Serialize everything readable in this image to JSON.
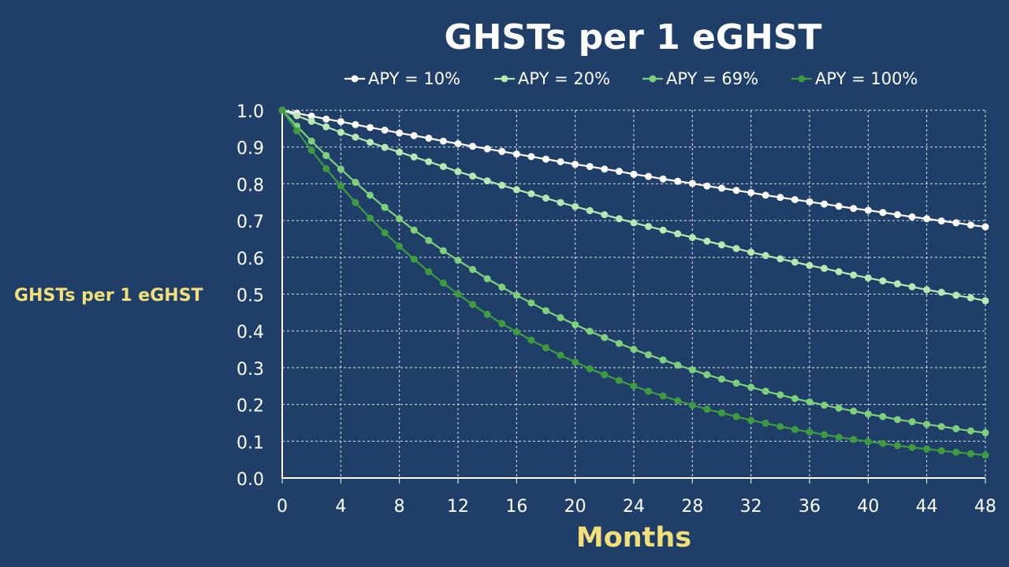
{
  "colors": {
    "background": "#1f3f69",
    "text": "#ffffff",
    "axis_label": "#f3df7a",
    "grid": "#dbe6f0",
    "axis": "#ffffff"
  },
  "chart_data": {
    "type": "line",
    "title": "GHSTs per 1 eGHST",
    "xlabel": "Months",
    "ylabel": "GHSTs per 1 eGHST",
    "xlim": [
      0,
      48
    ],
    "ylim": [
      0,
      1
    ],
    "x_ticks": [
      0,
      4,
      8,
      12,
      16,
      20,
      24,
      28,
      32,
      36,
      40,
      44,
      48
    ],
    "y_ticks": [
      0.0,
      0.1,
      0.2,
      0.3,
      0.4,
      0.5,
      0.6,
      0.7,
      0.8,
      0.9,
      1.0
    ],
    "x_tick_labels": [
      "0",
      "4",
      "8",
      "12",
      "16",
      "20",
      "24",
      "28",
      "32",
      "36",
      "40",
      "44",
      "48"
    ],
    "y_tick_labels": [
      "0.0",
      "0.1",
      "0.2",
      "0.3",
      "0.4",
      "0.5",
      "0.6",
      "0.7",
      "0.8",
      "0.9",
      "1.0"
    ],
    "grid": true,
    "legend_position": "top",
    "x": [
      0,
      1,
      2,
      3,
      4,
      5,
      6,
      7,
      8,
      9,
      10,
      11,
      12,
      13,
      14,
      15,
      16,
      17,
      18,
      19,
      20,
      21,
      22,
      23,
      24,
      25,
      26,
      27,
      28,
      29,
      30,
      31,
      32,
      33,
      34,
      35,
      36,
      37,
      38,
      39,
      40,
      41,
      42,
      43,
      44,
      45,
      46,
      47,
      48
    ],
    "series": [
      {
        "name": "APY = 10%",
        "color": "#ffffff",
        "values": [
          1.0,
          0.992,
          0.984,
          0.976,
          0.969,
          0.961,
          0.953,
          0.946,
          0.938,
          0.931,
          0.924,
          0.916,
          0.909,
          0.902,
          0.895,
          0.888,
          0.881,
          0.874,
          0.867,
          0.86,
          0.853,
          0.847,
          0.84,
          0.834,
          0.826,
          0.82,
          0.813,
          0.807,
          0.801,
          0.794,
          0.788,
          0.782,
          0.776,
          0.769,
          0.763,
          0.757,
          0.751,
          0.745,
          0.739,
          0.733,
          0.728,
          0.722,
          0.716,
          0.71,
          0.705,
          0.699,
          0.694,
          0.688,
          0.683
        ]
      },
      {
        "name": "APY = 20%",
        "color": "#b9e7b1",
        "values": [
          1.0,
          0.985,
          0.97,
          0.955,
          0.94,
          0.927,
          0.913,
          0.899,
          0.886,
          0.873,
          0.86,
          0.847,
          0.833,
          0.821,
          0.808,
          0.796,
          0.784,
          0.773,
          0.761,
          0.749,
          0.738,
          0.727,
          0.716,
          0.705,
          0.694,
          0.684,
          0.674,
          0.664,
          0.654,
          0.644,
          0.634,
          0.624,
          0.614,
          0.605,
          0.596,
          0.587,
          0.578,
          0.57,
          0.561,
          0.552,
          0.544,
          0.536,
          0.528,
          0.52,
          0.512,
          0.505,
          0.497,
          0.49,
          0.482
        ]
      },
      {
        "name": "APY = 69%",
        "color": "#7fd07a",
        "values": [
          1.0,
          0.957,
          0.916,
          0.877,
          0.84,
          0.804,
          0.769,
          0.736,
          0.705,
          0.674,
          0.646,
          0.618,
          0.592,
          0.567,
          0.542,
          0.519,
          0.497,
          0.476,
          0.455,
          0.436,
          0.417,
          0.399,
          0.382,
          0.366,
          0.35,
          0.335,
          0.321,
          0.307,
          0.294,
          0.281,
          0.269,
          0.258,
          0.247,
          0.236,
          0.226,
          0.216,
          0.207,
          0.198,
          0.19,
          0.182,
          0.174,
          0.167,
          0.159,
          0.153,
          0.146,
          0.14,
          0.134,
          0.128,
          0.123
        ]
      },
      {
        "name": "APY = 100%",
        "color": "#3f9b3f",
        "values": [
          1.0,
          0.944,
          0.891,
          0.841,
          0.794,
          0.749,
          0.707,
          0.667,
          0.63,
          0.595,
          0.561,
          0.53,
          0.5,
          0.472,
          0.445,
          0.42,
          0.397,
          0.375,
          0.354,
          0.334,
          0.315,
          0.297,
          0.281,
          0.265,
          0.25,
          0.236,
          0.223,
          0.21,
          0.198,
          0.187,
          0.177,
          0.167,
          0.157,
          0.149,
          0.14,
          0.132,
          0.125,
          0.118,
          0.111,
          0.105,
          0.099,
          0.094,
          0.088,
          0.083,
          0.079,
          0.074,
          0.07,
          0.066,
          0.062
        ]
      }
    ]
  }
}
